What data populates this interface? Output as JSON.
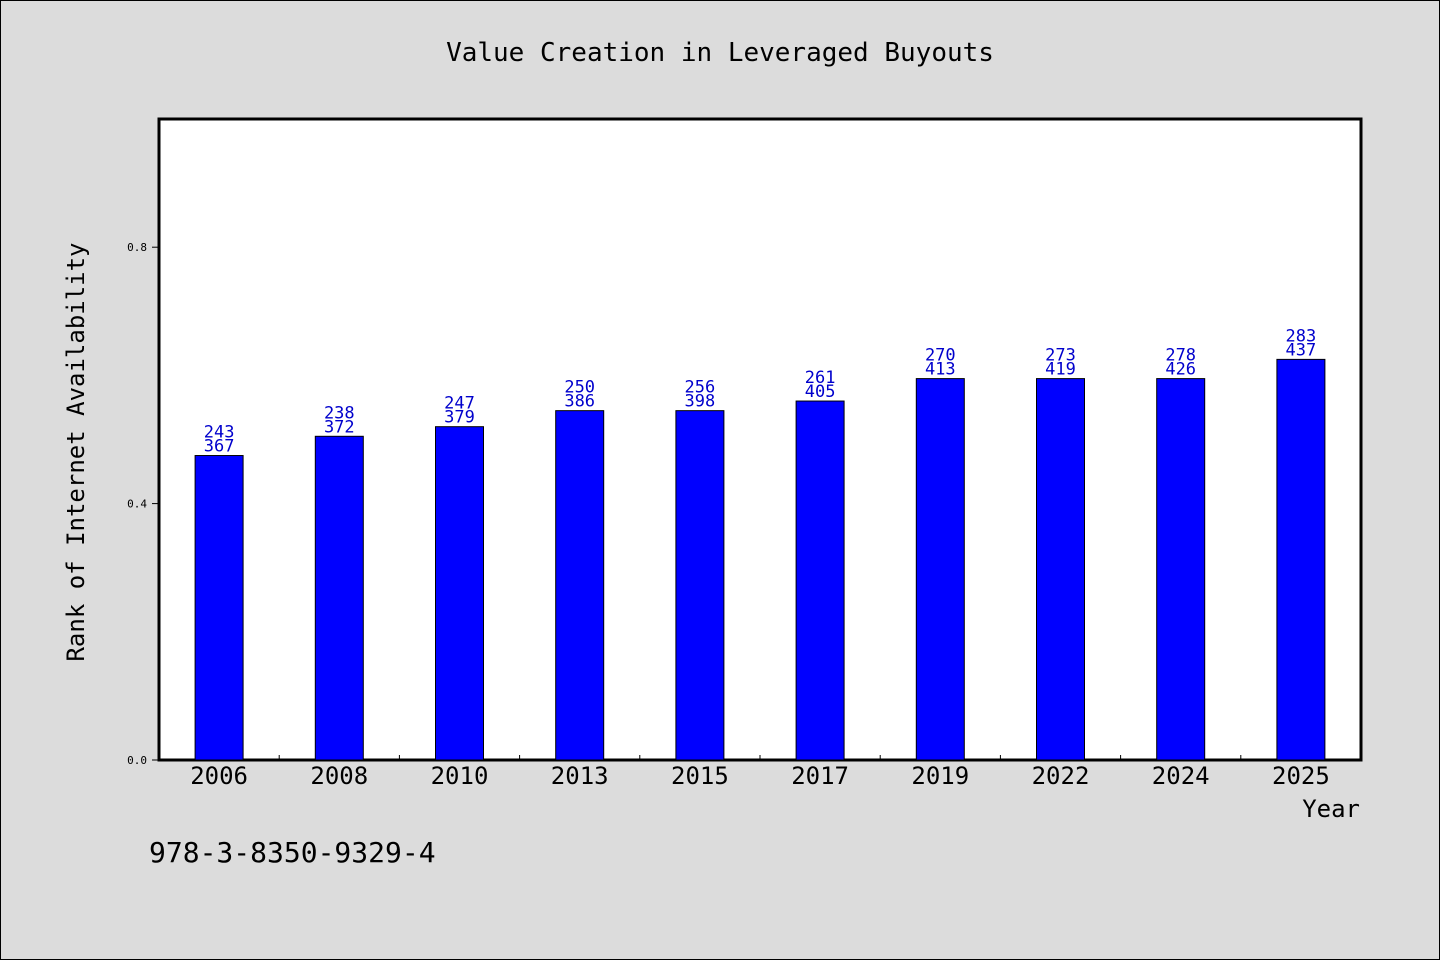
{
  "chart_data": {
    "type": "bar",
    "title": "Value Creation in Leveraged Buyouts",
    "xlabel": "Year",
    "ylabel": "Rank of Internet Availability",
    "categories": [
      "2006",
      "2008",
      "2010",
      "2013",
      "2015",
      "2017",
      "2019",
      "2022",
      "2024",
      "2025"
    ],
    "values": [
      0.475,
      0.505,
      0.52,
      0.545,
      0.545,
      0.56,
      0.595,
      0.595,
      0.595,
      0.625
    ],
    "label_top": [
      "243",
      "238",
      "247",
      "250",
      "256",
      "261",
      "270",
      "273",
      "278",
      "283"
    ],
    "label_bottom": [
      "367",
      "372",
      "379",
      "386",
      "398",
      "405",
      "413",
      "419",
      "426",
      "437"
    ],
    "ylim": [
      0.0,
      1.0
    ],
    "yticks": [
      0.0,
      0.4,
      0.8
    ],
    "ytick_labels": [
      "0.0",
      "0.4",
      "0.8"
    ],
    "bar_color": "#0000ff",
    "label_color": "#0000cc",
    "grid": false,
    "legend": "none"
  },
  "footer": {
    "isbn": "978-3-8350-9329-4"
  }
}
